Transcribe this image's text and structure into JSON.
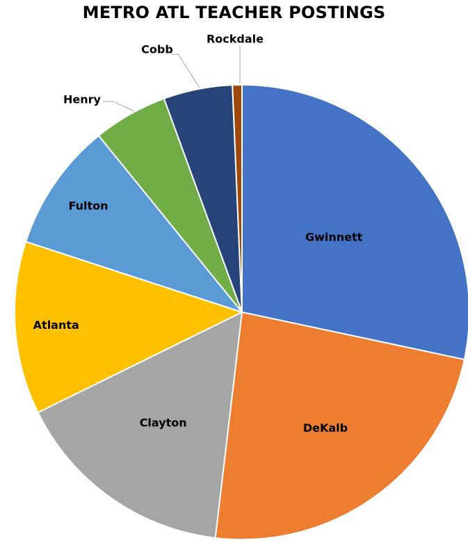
{
  "chart_data": {
    "type": "pie",
    "title": "METRO ATL TEACHER POSTINGS",
    "categories": [
      "Gwinnett",
      "DeKalb",
      "Clayton",
      "Atlanta",
      "Fulton",
      "Henry",
      "Cobb",
      "Rockdale"
    ],
    "values": [
      29.5,
      24.5,
      16.5,
      12.8,
      9.5,
      5.5,
      5.1,
      0.7
    ],
    "colors": [
      "#4472c4",
      "#ed7d31",
      "#a5a5a5",
      "#ffc000",
      "#5b9bd5",
      "#70ad47",
      "#264478",
      "#9e480e"
    ],
    "start_angle_deg": 0,
    "direction": "clockwise",
    "legend": "none",
    "data_labels": "category-name"
  }
}
